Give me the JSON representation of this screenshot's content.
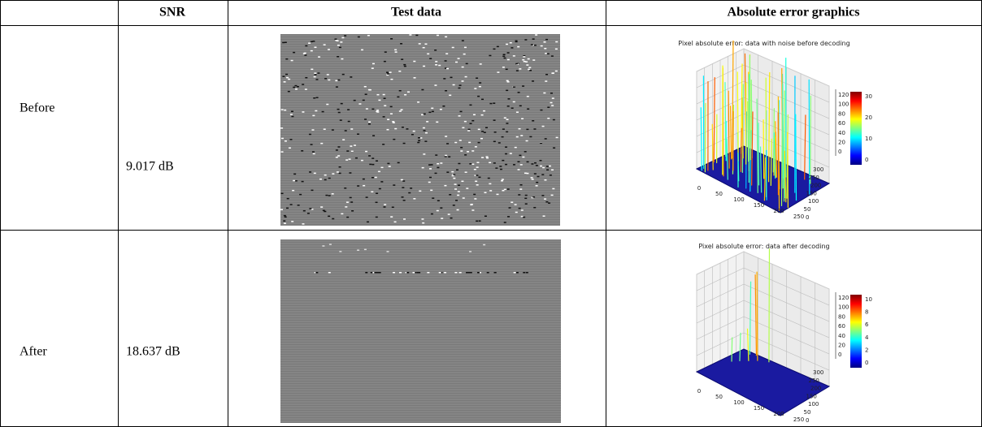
{
  "table": {
    "columns": [
      "SNR",
      "Test data",
      "Absolute error graphics"
    ],
    "rows": [
      {
        "label": "Before",
        "snr": "9.017 dB",
        "plot": {
          "title": "Pixel absolute error: data with noise before decoding",
          "z_ticks": [
            120,
            100,
            80,
            60,
            40,
            20,
            0
          ],
          "colorbar_ticks": [
            30,
            20,
            10,
            0
          ],
          "x_ticks": [
            0,
            50,
            100,
            150,
            200,
            250
          ],
          "y_ticks": [
            300,
            250,
            200,
            150,
            100,
            50,
            0
          ]
        }
      },
      {
        "label": "After",
        "snr": "18.637 dB",
        "plot": {
          "title": "Pixel absolute error: data after decoding",
          "z_ticks": [
            120,
            100,
            80,
            60,
            40,
            20,
            0
          ],
          "colorbar_ticks": [
            10,
            8,
            6,
            4,
            2,
            0
          ],
          "x_ticks": [
            0,
            50,
            100,
            150,
            200,
            250
          ],
          "y_ticks": [
            300,
            250,
            200,
            150,
            100,
            50,
            0
          ]
        }
      }
    ]
  }
}
